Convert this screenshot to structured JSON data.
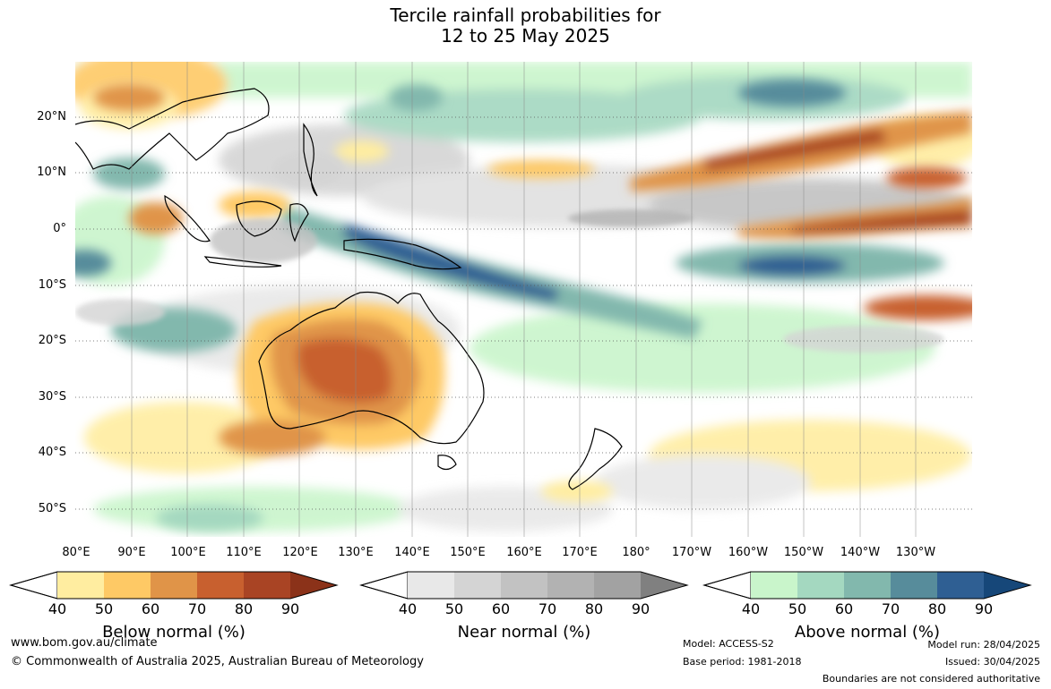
{
  "title_line1": "Tercile rainfall probabilities for",
  "title_line2": "12 to 25 May 2025",
  "lat_labels": [
    "20°N",
    "10°N",
    "0°",
    "10°S",
    "20°S",
    "30°S",
    "40°S",
    "50°S"
  ],
  "lon_labels": [
    "80°E",
    "90°E",
    "100°E",
    "110°E",
    "120°E",
    "130°E",
    "140°E",
    "150°E",
    "160°E",
    "170°E",
    "180°",
    "170°W",
    "160°W",
    "150°W",
    "140°W",
    "130°W"
  ],
  "colorbars": [
    {
      "title": "Below normal (%)",
      "ticks": [
        "40",
        "50",
        "60",
        "70",
        "80",
        "90"
      ],
      "colors": [
        "#ffeda0",
        "#fec965",
        "#e09448",
        "#c8602f",
        "#a94424"
      ],
      "extend_color": "#8b3219"
    },
    {
      "title": "Near normal (%)",
      "ticks": [
        "40",
        "50",
        "60",
        "70",
        "80",
        "90"
      ],
      "colors": [
        "#e8e8e8",
        "#d4d4d4",
        "#c2c2c2",
        "#b2b2b2",
        "#a2a2a2"
      ],
      "extend_color": "#808080"
    },
    {
      "title": "Above normal (%)",
      "ticks": [
        "40",
        "50",
        "60",
        "70",
        "80",
        "90"
      ],
      "colors": [
        "#c9f5cb",
        "#a4d8c0",
        "#82b8ad",
        "#578c9b",
        "#2f5f93"
      ],
      "extend_color": "#164779"
    }
  ],
  "footer": {
    "website": "www.bom.gov.au/climate",
    "copyright": "© Commonwealth of Australia 2025, Australian Bureau of Meteorology",
    "model": "Model: ACCESS-S2",
    "base_period": "Base period: 1981-2018",
    "model_run": "Model run: 28/04/2025",
    "issued": "Issued: 30/04/2025",
    "boundaries_note": "Boundaries are not considered authoritative"
  }
}
